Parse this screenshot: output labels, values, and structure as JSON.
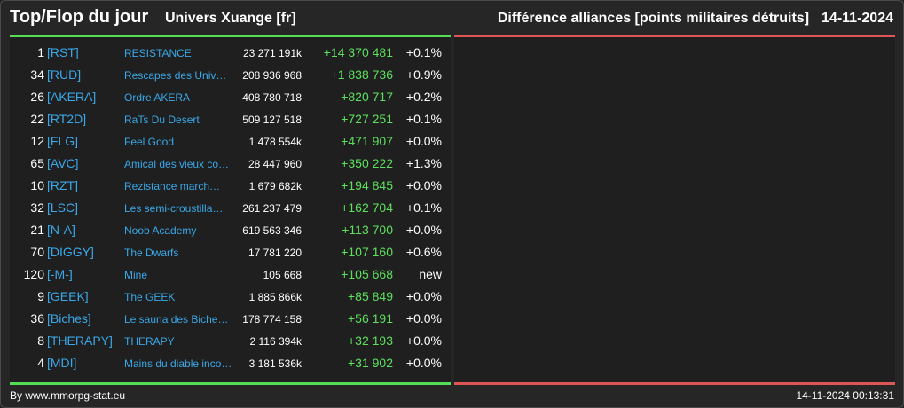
{
  "header": {
    "title": "Top/Flop du jour",
    "universe": "Univers Xuange [fr]",
    "subject": "Différence alliances [points militaires détruits]",
    "date": "14-11-2024"
  },
  "colors": {
    "background": "#262626",
    "panel": "#1f1f1f",
    "top_accent": "#55dd55",
    "flop_accent": "#dd5555",
    "tag_color": "#3aa8e8",
    "positive_diff": "#5ee05e"
  },
  "top": [
    {
      "rank": "1",
      "tag": "[RST]",
      "name": "RESISTANCE",
      "points": "23 271 191k",
      "diff": "+14 370 481",
      "pct": "+0.1%"
    },
    {
      "rank": "34",
      "tag": "[RUD]",
      "name": "Rescapes des Univ…",
      "points": "208 936 968",
      "diff": "+1 838 736",
      "pct": "+0.9%"
    },
    {
      "rank": "26",
      "tag": "[AKERA]",
      "name": "Ordre AKERA",
      "points": "408 780 718",
      "diff": "+820 717",
      "pct": "+0.2%"
    },
    {
      "rank": "22",
      "tag": "[RT2D]",
      "name": "RaTs Du Desert",
      "points": "509 127 518",
      "diff": "+727 251",
      "pct": "+0.1%"
    },
    {
      "rank": "12",
      "tag": "[FLG]",
      "name": "Feel Good",
      "points": "1 478 554k",
      "diff": "+471 907",
      "pct": "+0.0%"
    },
    {
      "rank": "65",
      "tag": "[AVC]",
      "name": "Amical des vieux co…",
      "points": "28 447 960",
      "diff": "+350 222",
      "pct": "+1.3%"
    },
    {
      "rank": "10",
      "tag": "[RZT]",
      "name": "Rezistance march…",
      "points": "1 679 682k",
      "diff": "+194 845",
      "pct": "+0.0%"
    },
    {
      "rank": "32",
      "tag": "[LSC]",
      "name": "Les semi-croustilla…",
      "points": "261 237 479",
      "diff": "+162 704",
      "pct": "+0.1%"
    },
    {
      "rank": "21",
      "tag": "[N-A]",
      "name": "Noob Academy",
      "points": "619 563 346",
      "diff": "+113 700",
      "pct": "+0.0%"
    },
    {
      "rank": "70",
      "tag": "[DIGGY]",
      "name": "The Dwarfs",
      "points": "17 781 220",
      "diff": "+107 160",
      "pct": "+0.6%"
    },
    {
      "rank": "120",
      "tag": "[-M-]",
      "name": "Mine",
      "points": "105 668",
      "diff": "+105 668",
      "pct": "new"
    },
    {
      "rank": "9",
      "tag": "[GEEK]",
      "name": "The GEEK",
      "points": "1 885 866k",
      "diff": "+85 849",
      "pct": "+0.0%"
    },
    {
      "rank": "36",
      "tag": "[Biches]",
      "name": "Le sauna des Biche…",
      "points": "178 774 158",
      "diff": "+56 191",
      "pct": "+0.0%"
    },
    {
      "rank": "8",
      "tag": "[THERAPY]",
      "name": "THERAPY",
      "points": "2 116 394k",
      "diff": "+32 193",
      "pct": "+0.0%"
    },
    {
      "rank": "4",
      "tag": "[MDI]",
      "name": "Mains du diable inco…",
      "points": "3 181 536k",
      "diff": "+31 902",
      "pct": "+0.0%"
    }
  ],
  "flop": [],
  "footer": {
    "credit": "By www.mmorpg-stat.eu",
    "timestamp": "14-11-2024 00:13:31"
  }
}
